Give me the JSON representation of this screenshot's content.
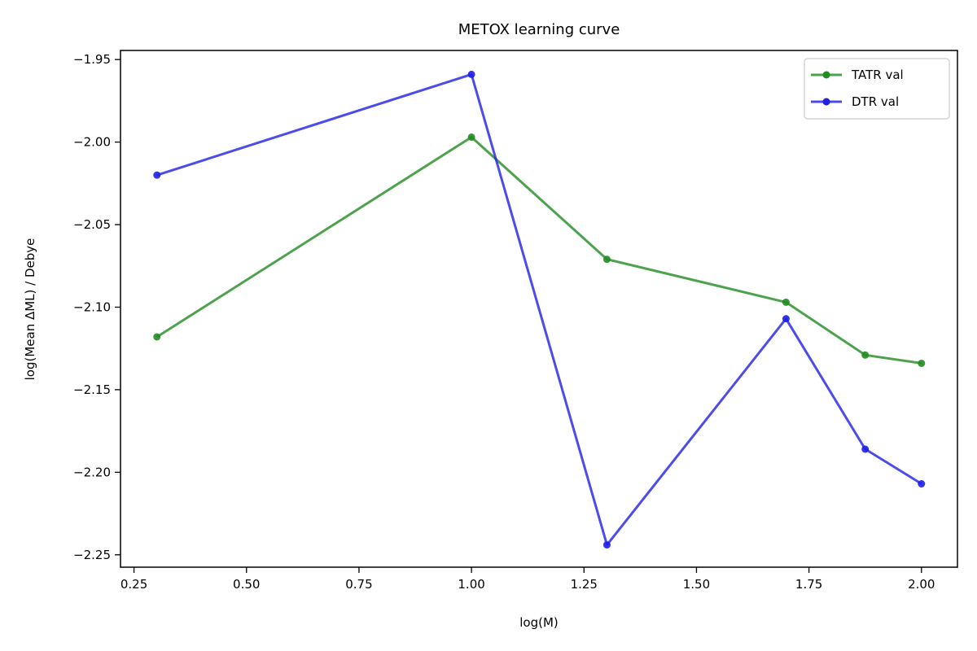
{
  "chart_data": {
    "type": "line",
    "title": "METOX learning curve",
    "xlabel": "log(M)",
    "ylabel": "log(Mean ΔML) / Debye",
    "xlim": [
      0.22,
      2.08
    ],
    "ylim": [
      -2.2575,
      -1.9445
    ],
    "xticks": [
      0.25,
      0.5,
      0.75,
      1.0,
      1.25,
      1.5,
      1.75,
      2.0
    ],
    "xtick_labels": [
      "0.25",
      "0.50",
      "0.75",
      "1.00",
      "1.25",
      "1.50",
      "1.75",
      "2.00"
    ],
    "yticks": [
      -1.95,
      -2.0,
      -2.05,
      -2.1,
      -2.15,
      -2.2,
      -2.25
    ],
    "ytick_labels": [
      "−1.95",
      "−2.00",
      "−2.05",
      "−2.10",
      "−2.15",
      "−2.20",
      "−2.25"
    ],
    "grid": false,
    "legend_position": "top-right",
    "x": [
      0.301,
      1.0,
      1.301,
      1.699,
      1.875,
      2.0
    ],
    "series": [
      {
        "name": "TATR val",
        "color": "#228B22",
        "values": [
          -2.118,
          -1.997,
          -2.071,
          -2.097,
          -2.129,
          -2.134
        ]
      },
      {
        "name": "DTR val",
        "color": "#1f1fe6",
        "values": [
          -2.02,
          -1.959,
          -2.244,
          -2.107,
          -2.186,
          -2.207
        ]
      }
    ]
  }
}
